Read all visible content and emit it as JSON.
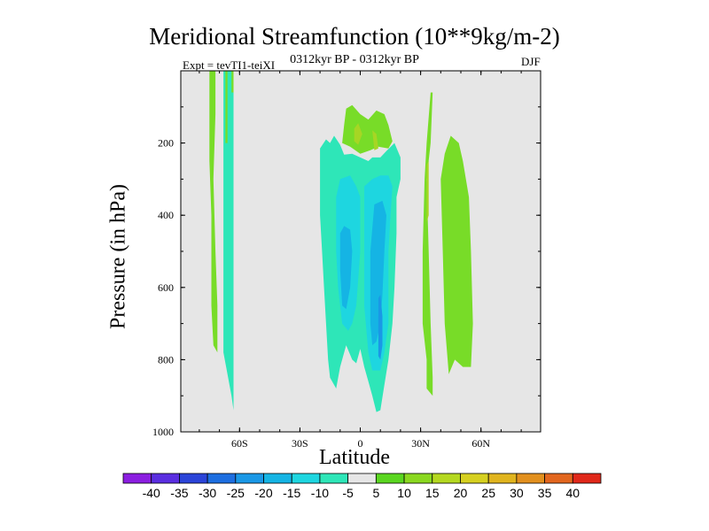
{
  "title": "Meridional Streamfunction (10**9kg/m-2)",
  "subtitle": "0312kyr BP - 0312kyr BP",
  "expt_label": "Expt = tevTI1-teiXI",
  "season": "DJF",
  "chart_data": {
    "type": "heatmap",
    "title": "Meridional Streamfunction (10**9kg/m-2)",
    "xlabel": "Latitude",
    "ylabel": "Pressure (in hPa)",
    "x_range": [
      -90,
      90
    ],
    "y_range": [
      0,
      1000
    ],
    "y_inverted": true,
    "x_ticks": [
      {
        "value": -60,
        "label": "60S"
      },
      {
        "value": -30,
        "label": "30S"
      },
      {
        "value": 0,
        "label": "0"
      },
      {
        "value": 30,
        "label": "30N"
      },
      {
        "value": 60,
        "label": "60N"
      }
    ],
    "y_ticks": [
      {
        "value": 200,
        "label": "200"
      },
      {
        "value": 400,
        "label": "400"
      },
      {
        "value": 600,
        "label": "600"
      },
      {
        "value": 800,
        "label": "800"
      },
      {
        "value": 1000,
        "label": "1000"
      }
    ],
    "background_color": "#e6e6e6",
    "colorbar": {
      "levels": [
        -40,
        -35,
        -30,
        -25,
        -20,
        -15,
        -10,
        -5,
        5,
        10,
        15,
        20,
        25,
        30,
        35,
        40
      ],
      "labels": [
        "-40",
        "-35",
        "-30",
        "-25",
        "-20",
        "-15",
        "-10",
        "-5",
        "5",
        "10",
        "15",
        "20",
        "25",
        "30",
        "35",
        "40"
      ],
      "colors": [
        "#8b1ee0",
        "#5a2ee0",
        "#2b44d8",
        "#1d6ee0",
        "#1a98e6",
        "#15b4e4",
        "#1ed6e0",
        "#2ee6b8",
        "#e6e6e6",
        "#5ad620",
        "#8ad820",
        "#b4d820",
        "#d6d020",
        "#e0b41e",
        "#e2901e",
        "#e2661e",
        "#e0281a"
      ]
    },
    "regions": [
      {
        "name": "sh-positive-band",
        "value": 5,
        "color": "#78dc28",
        "points": [
          [
            -75,
            0
          ],
          [
            -72,
            0
          ],
          [
            -72,
            120
          ],
          [
            -73,
            300
          ],
          [
            -72,
            500
          ],
          [
            -71,
            650
          ],
          [
            -71,
            780
          ],
          [
            -73,
            760
          ],
          [
            -74,
            650
          ],
          [
            -74,
            400
          ],
          [
            -75,
            250
          ]
        ]
      },
      {
        "name": "sh-negative-band",
        "value": -5,
        "color": "#2ee6b8",
        "points": [
          [
            -68,
            0
          ],
          [
            -63,
            0
          ],
          [
            -63,
            300
          ],
          [
            -63,
            780
          ],
          [
            -63,
            940
          ],
          [
            -64,
            900
          ],
          [
            -68,
            780
          ],
          [
            -68,
            300
          ]
        ]
      },
      {
        "name": "sh-band-core-1",
        "value": 5,
        "color": "#78dc28",
        "points": [
          [
            -67,
            0
          ],
          [
            -66,
            0
          ],
          [
            -66,
            200
          ],
          [
            -67,
            200
          ]
        ]
      },
      {
        "name": "sh-band-core-2",
        "value": 5,
        "color": "#78dc28",
        "points": [
          [
            -64,
            0
          ],
          [
            -63,
            0
          ],
          [
            -63,
            60
          ],
          [
            -64,
            60
          ]
        ]
      },
      {
        "name": "upper-positive-cell",
        "value": 5,
        "color": "#78dc28",
        "points": [
          [
            -7,
            105
          ],
          [
            -4,
            95
          ],
          [
            0,
            120
          ],
          [
            4,
            135
          ],
          [
            8,
            110
          ],
          [
            12,
            120
          ],
          [
            14,
            150
          ],
          [
            16,
            195
          ],
          [
            14,
            215
          ],
          [
            9,
            210
          ],
          [
            5,
            220
          ],
          [
            0,
            230
          ],
          [
            -5,
            210
          ],
          [
            -9,
            200
          ],
          [
            -8,
            150
          ]
        ]
      },
      {
        "name": "upper-positive-core",
        "value": 10,
        "color": "#a6d624",
        "points": [
          [
            -3,
            160
          ],
          [
            -1,
            145
          ],
          [
            1,
            175
          ],
          [
            -1,
            205
          ],
          [
            -3,
            195
          ]
        ]
      },
      {
        "name": "upper-positive-core-2",
        "value": 10,
        "color": "#a6d624",
        "points": [
          [
            6,
            165
          ],
          [
            8,
            175
          ],
          [
            9,
            215
          ],
          [
            7,
            220
          ]
        ]
      },
      {
        "name": "tropical-negative-cell",
        "value": -5,
        "color": "#2ee6b8",
        "points": [
          [
            -20,
            215
          ],
          [
            -17,
            190
          ],
          [
            -15,
            200
          ],
          [
            -13,
            180
          ],
          [
            -10,
            205
          ],
          [
            -8,
            232
          ],
          [
            -4,
            230
          ],
          [
            0,
            240
          ],
          [
            4,
            250
          ],
          [
            6,
            240
          ],
          [
            10,
            240
          ],
          [
            13,
            222
          ],
          [
            17,
            200
          ],
          [
            20,
            240
          ],
          [
            20,
            300
          ],
          [
            18,
            350
          ],
          [
            18,
            450
          ],
          [
            17,
            600
          ],
          [
            16,
            700
          ],
          [
            14,
            800
          ],
          [
            12,
            870
          ],
          [
            10,
            940
          ],
          [
            8,
            945
          ],
          [
            6,
            900
          ],
          [
            4,
            860
          ],
          [
            2,
            820
          ],
          [
            0,
            770
          ],
          [
            -2,
            810
          ],
          [
            -4,
            800
          ],
          [
            -7,
            760
          ],
          [
            -10,
            820
          ],
          [
            -12,
            880
          ],
          [
            -15,
            850
          ],
          [
            -16,
            800
          ],
          [
            -17,
            700
          ],
          [
            -18,
            600
          ],
          [
            -19,
            500
          ],
          [
            -20,
            400
          ]
        ]
      },
      {
        "name": "tropical-core-west",
        "value": -10,
        "color": "#1ed6e0",
        "points": [
          [
            -12,
            350
          ],
          [
            -10,
            300
          ],
          [
            -5,
            290
          ],
          [
            -2,
            320
          ],
          [
            0,
            350
          ],
          [
            0,
            500
          ],
          [
            -2,
            650
          ],
          [
            -4,
            700
          ],
          [
            -6,
            720
          ],
          [
            -9,
            700
          ],
          [
            -11,
            600
          ],
          [
            -12,
            500
          ]
        ]
      },
      {
        "name": "tropical-core-east",
        "value": -10,
        "color": "#1ed6e0",
        "points": [
          [
            2,
            320
          ],
          [
            6,
            300
          ],
          [
            10,
            290
          ],
          [
            14,
            290
          ],
          [
            16,
            320
          ],
          [
            15,
            400
          ],
          [
            14,
            500
          ],
          [
            14,
            700
          ],
          [
            12,
            780
          ],
          [
            10,
            830
          ],
          [
            6,
            830
          ],
          [
            4,
            780
          ],
          [
            2,
            650
          ],
          [
            2,
            500
          ]
        ]
      },
      {
        "name": "tropical-center-west",
        "value": -15,
        "color": "#15b4e4",
        "points": [
          [
            -10,
            450
          ],
          [
            -8,
            430
          ],
          [
            -5,
            440
          ],
          [
            -4,
            500
          ],
          [
            -5,
            600
          ],
          [
            -7,
            660
          ],
          [
            -9,
            650
          ],
          [
            -10,
            550
          ]
        ]
      },
      {
        "name": "tropical-center-east",
        "value": -15,
        "color": "#15b4e4",
        "points": [
          [
            7,
            370
          ],
          [
            11,
            360
          ],
          [
            13,
            400
          ],
          [
            12,
            500
          ],
          [
            11,
            620
          ],
          [
            10,
            700
          ],
          [
            8,
            750
          ],
          [
            6,
            760
          ],
          [
            5,
            700
          ],
          [
            5,
            500
          ]
        ]
      },
      {
        "name": "tropical-deep-core",
        "value": -20,
        "color": "#1a98e6",
        "points": [
          [
            10,
            620
          ],
          [
            11,
            680
          ],
          [
            11,
            760
          ],
          [
            10,
            800
          ],
          [
            9,
            790
          ],
          [
            9,
            700
          ],
          [
            9,
            630
          ]
        ]
      },
      {
        "name": "nh-thin-positive",
        "value": 5,
        "color": "#78dc28",
        "points": [
          [
            35,
            60
          ],
          [
            36,
            60
          ],
          [
            35,
            200
          ],
          [
            33,
            300
          ],
          [
            34,
            500
          ],
          [
            35,
            700
          ],
          [
            36,
            850
          ],
          [
            36,
            900
          ],
          [
            33,
            880
          ],
          [
            33,
            800
          ],
          [
            31,
            700
          ],
          [
            31,
            500
          ],
          [
            32,
            300
          ],
          [
            33,
            200
          ]
        ]
      },
      {
        "name": "nh-thin-core",
        "value": 10,
        "color": "#a6d624",
        "points": [
          [
            33,
            260
          ],
          [
            34,
            250
          ],
          [
            34,
            400
          ],
          [
            33,
            420
          ]
        ]
      },
      {
        "name": "nh-positive-cell",
        "value": 5,
        "color": "#78dc28",
        "points": [
          [
            42,
            230
          ],
          [
            45,
            180
          ],
          [
            49,
            200
          ],
          [
            51,
            250
          ],
          [
            54,
            350
          ],
          [
            55,
            500
          ],
          [
            56,
            700
          ],
          [
            55,
            820
          ],
          [
            51,
            820
          ],
          [
            47,
            800
          ],
          [
            44,
            840
          ],
          [
            42,
            700
          ],
          [
            41,
            500
          ],
          [
            40,
            300
          ]
        ]
      }
    ]
  },
  "colorbar_labels": [
    "-40",
    "-35",
    "-30",
    "-25",
    "-20",
    "-15",
    "-10",
    "-5",
    "5",
    "10",
    "15",
    "20",
    "25",
    "30",
    "35",
    "40"
  ]
}
